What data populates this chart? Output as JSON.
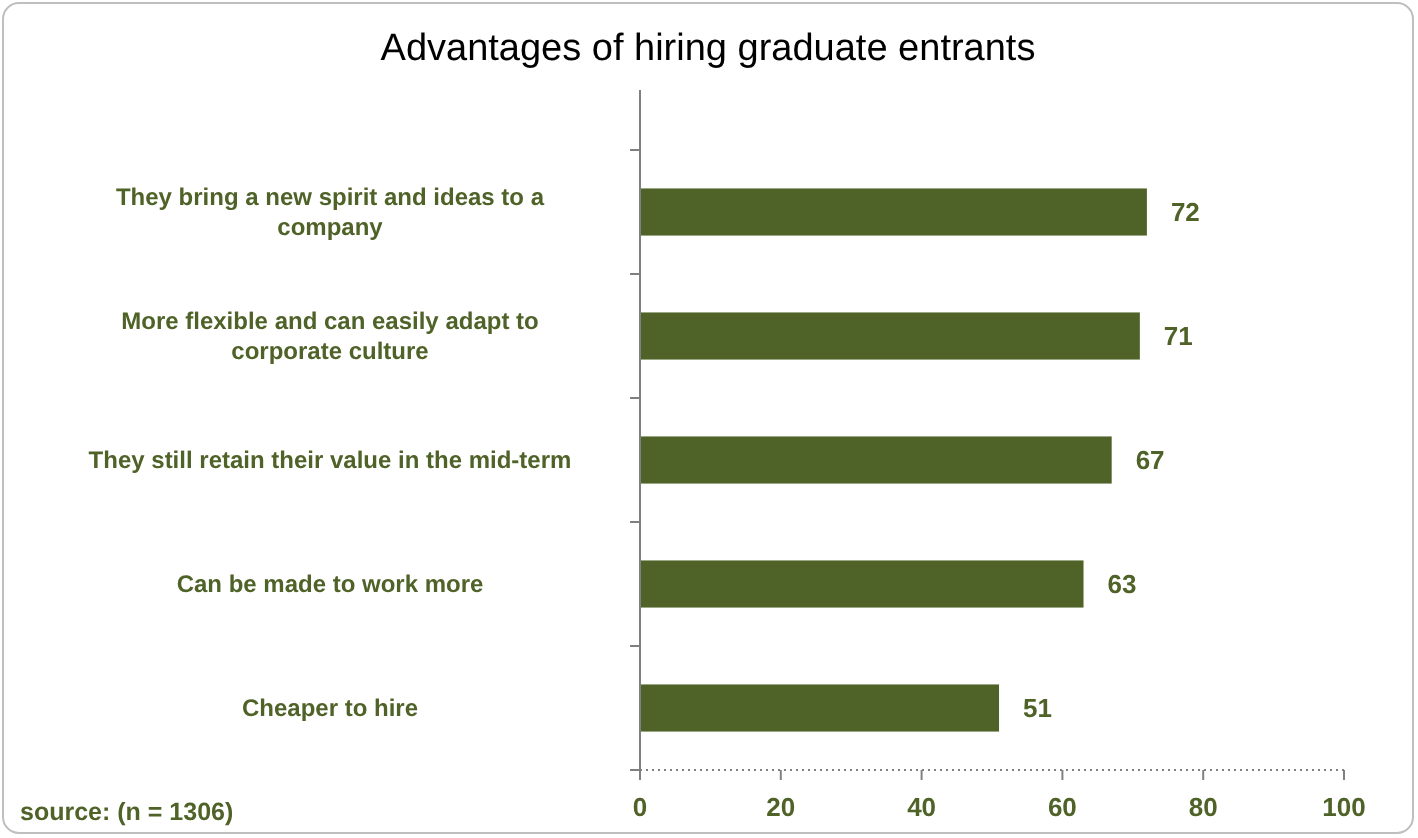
{
  "chart_data": {
    "type": "bar",
    "orientation": "horizontal",
    "title": "Advantages of hiring graduate entrants",
    "categories": [
      "They bring a new spirit and ideas to a company",
      "More flexible and can easily adapt to corporate culture",
      "They still retain their value in the mid-term",
      "Can be made to work more",
      "Cheaper to hire"
    ],
    "values": [
      72,
      71,
      67,
      63,
      51
    ],
    "color": "#4f6228",
    "xlim": [
      0,
      100
    ],
    "xticks": [
      0,
      20,
      40,
      60,
      80,
      100
    ],
    "data_labels": true,
    "annotations": [
      "source: (n = 1306)"
    ]
  }
}
